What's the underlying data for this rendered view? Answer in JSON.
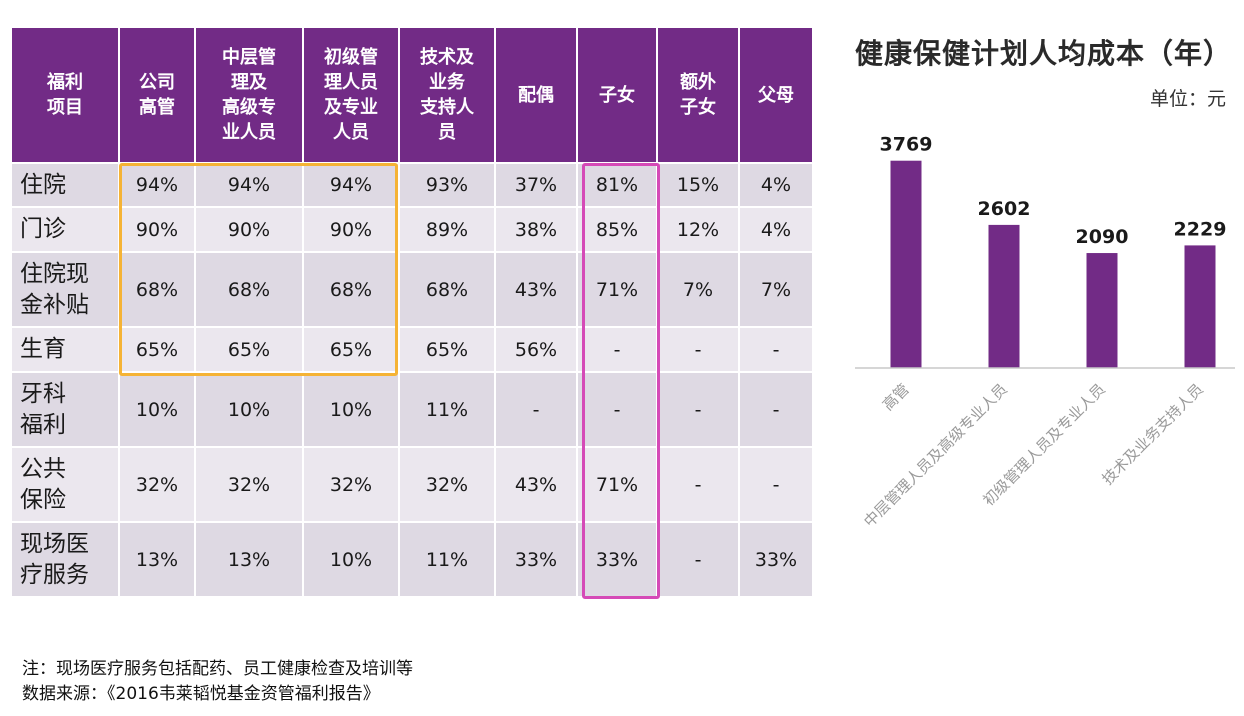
{
  "table": {
    "headers": [
      [
        "福利",
        "项目"
      ],
      [
        "公司",
        "高管"
      ],
      [
        "中层管",
        "理及",
        "高级专",
        "业人员"
      ],
      [
        "初级管",
        "理人员",
        "及专业",
        "人员"
      ],
      [
        "技术及",
        "业务",
        "支持人",
        "员"
      ],
      [
        "配偶"
      ],
      [
        "子女"
      ],
      [
        "额外",
        "子女"
      ],
      [
        "父母"
      ]
    ],
    "rows": [
      {
        "label": [
          "住院"
        ],
        "values": [
          "94%",
          "94%",
          "94%",
          "93%",
          "37%",
          "81%",
          "15%",
          "4%"
        ]
      },
      {
        "label": [
          "门诊"
        ],
        "values": [
          "90%",
          "90%",
          "90%",
          "89%",
          "38%",
          "85%",
          "12%",
          "4%"
        ]
      },
      {
        "label": [
          "住院现",
          "金补贴"
        ],
        "values": [
          "68%",
          "68%",
          "68%",
          "68%",
          "43%",
          "71%",
          "7%",
          "7%"
        ]
      },
      {
        "label": [
          "生育"
        ],
        "values": [
          "65%",
          "65%",
          "65%",
          "65%",
          "56%",
          "-",
          "-",
          "-"
        ]
      },
      {
        "label": [
          "牙科",
          "福利"
        ],
        "values": [
          "10%",
          "10%",
          "10%",
          "11%",
          "-",
          "-",
          "-",
          "-"
        ]
      },
      {
        "label": [
          "公共",
          "保险"
        ],
        "values": [
          "32%",
          "32%",
          "32%",
          "32%",
          "43%",
          "71%",
          "-",
          "-"
        ]
      },
      {
        "label": [
          "现场医",
          "疗服务"
        ],
        "values": [
          "13%",
          "13%",
          "10%",
          "11%",
          "33%",
          "33%",
          "-",
          "33%"
        ]
      }
    ],
    "colors": {
      "header_bg": "#722b86",
      "row_odd": "#ded9e3",
      "row_even": "#ebe7ee",
      "highlight_orange": "#f5b335",
      "highlight_pink": "#d54ab7"
    }
  },
  "chart_data": {
    "type": "bar",
    "title": "健康保健计划人均成本（年）",
    "unit": "单位：元",
    "categories": [
      "高管",
      "中层管理人员及高级专业人员",
      "初级管理人员及专业人员",
      "技术及业务支持人员"
    ],
    "values": [
      3769,
      2602,
      2090,
      2229
    ],
    "ylim": [
      0,
      4000
    ],
    "bar_color": "#722b86",
    "grid": false,
    "legend": "none"
  },
  "notes": {
    "note": "注：现场医疗服务包括配药、员工健康检查及培训等",
    "source": "数据来源：《2016韦莱韬悦基金资管福利报告》"
  }
}
